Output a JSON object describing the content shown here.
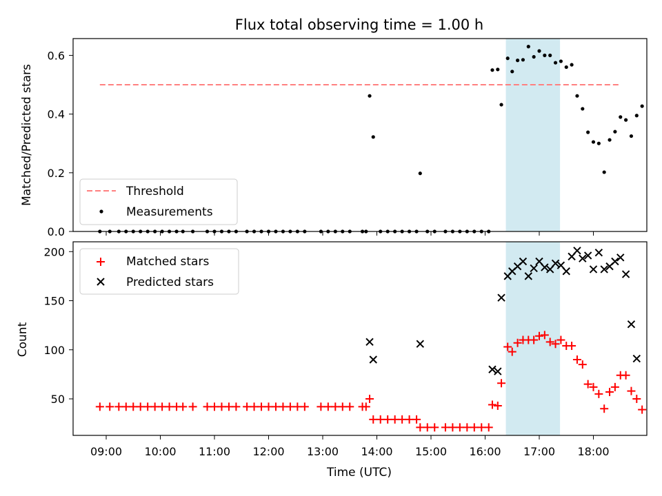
{
  "chart_data": [
    {
      "type": "scatter",
      "title": "Flux total observing time = 1.00 h",
      "xlabel": "",
      "ylabel": "Matched/Predicted stars",
      "ylim": [
        0,
        0.66
      ],
      "yticks": [
        "0.0",
        "0.2",
        "0.4",
        "0.6"
      ],
      "legend_position": "lower-left",
      "threshold": {
        "name": "Threshold",
        "value": 0.5,
        "x_range": [
          "08:53",
          "18:30"
        ]
      },
      "highlight_span": {
        "start": "16:23",
        "end": "17:23"
      },
      "series": [
        {
          "name": "Measurements",
          "points": [
            [
              "08:53",
              0
            ],
            [
              "09:04",
              0
            ],
            [
              "09:14",
              0
            ],
            [
              "09:22",
              0
            ],
            [
              "09:30",
              0
            ],
            [
              "09:38",
              0
            ],
            [
              "09:46",
              0
            ],
            [
              "09:54",
              0
            ],
            [
              "10:02",
              0
            ],
            [
              "10:10",
              0
            ],
            [
              "10:18",
              0
            ],
            [
              "10:25",
              0
            ],
            [
              "10:36",
              0
            ],
            [
              "10:52",
              0
            ],
            [
              "11:00",
              0
            ],
            [
              "11:08",
              0
            ],
            [
              "11:16",
              0
            ],
            [
              "11:24",
              0
            ],
            [
              "11:36",
              0
            ],
            [
              "11:44",
              0
            ],
            [
              "11:52",
              0
            ],
            [
              "12:00",
              0
            ],
            [
              "12:08",
              0
            ],
            [
              "12:16",
              0
            ],
            [
              "12:24",
              0
            ],
            [
              "12:32",
              0
            ],
            [
              "12:40",
              0
            ],
            [
              "12:58",
              0
            ],
            [
              "13:06",
              0
            ],
            [
              "13:14",
              0
            ],
            [
              "13:22",
              0
            ],
            [
              "13:30",
              0
            ],
            [
              "13:44",
              0
            ],
            [
              "13:48",
              0
            ],
            [
              "13:52",
              0.462
            ],
            [
              "13:56",
              0.322
            ],
            [
              "14:04",
              0
            ],
            [
              "14:12",
              0
            ],
            [
              "14:20",
              0
            ],
            [
              "14:28",
              0
            ],
            [
              "14:36",
              0
            ],
            [
              "14:44",
              0
            ],
            [
              "14:48",
              0.198
            ],
            [
              "14:56",
              0
            ],
            [
              "15:04",
              0
            ],
            [
              "15:16",
              0
            ],
            [
              "15:24",
              0
            ],
            [
              "15:32",
              0
            ],
            [
              "15:40",
              0
            ],
            [
              "15:48",
              0
            ],
            [
              "15:56",
              0
            ],
            [
              "16:04",
              0
            ],
            [
              "16:08",
              0.55
            ],
            [
              "16:14",
              0.552
            ],
            [
              "16:18",
              0.432
            ],
            [
              "16:25",
              0.59
            ],
            [
              "16:30",
              0.545
            ],
            [
              "16:36",
              0.583
            ],
            [
              "16:42",
              0.585
            ],
            [
              "16:48",
              0.63
            ],
            [
              "16:54",
              0.595
            ],
            [
              "17:00",
              0.615
            ],
            [
              "17:06",
              0.6
            ],
            [
              "17:12",
              0.6
            ],
            [
              "17:18",
              0.575
            ],
            [
              "17:24",
              0.58
            ],
            [
              "17:30",
              0.56
            ],
            [
              "17:36",
              0.568
            ],
            [
              "17:42",
              0.462
            ],
            [
              "17:48",
              0.418
            ],
            [
              "17:54",
              0.338
            ],
            [
              "18:00",
              0.305
            ],
            [
              "18:06",
              0.3
            ],
            [
              "18:12",
              0.202
            ],
            [
              "18:18",
              0.312
            ],
            [
              "18:24",
              0.34
            ],
            [
              "18:30",
              0.39
            ],
            [
              "18:36",
              0.38
            ],
            [
              "18:42",
              0.325
            ],
            [
              "18:48",
              0.395
            ],
            [
              "18:54",
              0.427
            ]
          ]
        }
      ]
    },
    {
      "type": "scatter",
      "title": "",
      "xlabel": "Time (UTC)",
      "ylabel": "Count",
      "ylim": [
        12,
        212
      ],
      "yticks": [
        "50",
        "100",
        "150",
        "200"
      ],
      "xticks": [
        "09:00",
        "10:00",
        "11:00",
        "12:00",
        "13:00",
        "14:00",
        "15:00",
        "16:00",
        "17:00",
        "18:00"
      ],
      "legend_position": "upper-left",
      "highlight_span": {
        "start": "16:23",
        "end": "17:23"
      },
      "series": [
        {
          "name": "Matched stars",
          "color": "#ff0000",
          "marker": "plus",
          "points": [
            [
              "08:53",
              42
            ],
            [
              "09:04",
              42
            ],
            [
              "09:14",
              42
            ],
            [
              "09:22",
              42
            ],
            [
              "09:30",
              42
            ],
            [
              "09:38",
              42
            ],
            [
              "09:46",
              42
            ],
            [
              "09:54",
              42
            ],
            [
              "10:02",
              42
            ],
            [
              "10:10",
              42
            ],
            [
              "10:18",
              42
            ],
            [
              "10:25",
              42
            ],
            [
              "10:36",
              42
            ],
            [
              "10:52",
              42
            ],
            [
              "11:00",
              42
            ],
            [
              "11:08",
              42
            ],
            [
              "11:16",
              42
            ],
            [
              "11:24",
              42
            ],
            [
              "11:36",
              42
            ],
            [
              "11:44",
              42
            ],
            [
              "11:52",
              42
            ],
            [
              "12:00",
              42
            ],
            [
              "12:08",
              42
            ],
            [
              "12:16",
              42
            ],
            [
              "12:24",
              42
            ],
            [
              "12:32",
              42
            ],
            [
              "12:40",
              42
            ],
            [
              "12:58",
              42
            ],
            [
              "13:06",
              42
            ],
            [
              "13:14",
              42
            ],
            [
              "13:22",
              42
            ],
            [
              "13:30",
              42
            ],
            [
              "13:44",
              42
            ],
            [
              "13:48",
              42
            ],
            [
              "13:52",
              50
            ],
            [
              "13:56",
              29
            ],
            [
              "14:04",
              29
            ],
            [
              "14:12",
              29
            ],
            [
              "14:20",
              29
            ],
            [
              "14:28",
              29
            ],
            [
              "14:36",
              29
            ],
            [
              "14:44",
              29
            ],
            [
              "14:48",
              21
            ],
            [
              "14:56",
              21
            ],
            [
              "15:04",
              21
            ],
            [
              "15:16",
              21
            ],
            [
              "15:24",
              21
            ],
            [
              "15:32",
              21
            ],
            [
              "15:40",
              21
            ],
            [
              "15:48",
              21
            ],
            [
              "15:56",
              21
            ],
            [
              "16:04",
              21
            ],
            [
              "16:08",
              44
            ],
            [
              "16:14",
              43
            ],
            [
              "16:18",
              66
            ],
            [
              "16:25",
              103
            ],
            [
              "16:30",
              98
            ],
            [
              "16:36",
              107
            ],
            [
              "16:42",
              110
            ],
            [
              "16:48",
              110
            ],
            [
              "16:54",
              110
            ],
            [
              "17:00",
              114
            ],
            [
              "17:06",
              115
            ],
            [
              "17:12",
              108
            ],
            [
              "17:18",
              106
            ],
            [
              "17:24",
              110
            ],
            [
              "17:30",
              104
            ],
            [
              "17:36",
              104
            ],
            [
              "17:42",
              90
            ],
            [
              "17:48",
              85
            ],
            [
              "17:54",
              65
            ],
            [
              "18:00",
              62
            ],
            [
              "18:06",
              55
            ],
            [
              "18:12",
              40
            ],
            [
              "18:18",
              57
            ],
            [
              "18:24",
              62
            ],
            [
              "18:30",
              74
            ],
            [
              "18:36",
              74
            ],
            [
              "18:42",
              58
            ],
            [
              "18:48",
              50
            ],
            [
              "18:54",
              39
            ]
          ]
        },
        {
          "name": "Predicted stars",
          "color": "#000000",
          "marker": "x",
          "points": [
            [
              "13:52",
              108
            ],
            [
              "13:56",
              90
            ],
            [
              "14:48",
              106
            ],
            [
              "16:08",
              80
            ],
            [
              "16:14",
              78
            ],
            [
              "16:18",
              153
            ],
            [
              "16:25",
              175
            ],
            [
              "16:30",
              180
            ],
            [
              "16:36",
              185
            ],
            [
              "16:42",
              190
            ],
            [
              "16:48",
              175
            ],
            [
              "16:54",
              183
            ],
            [
              "17:00",
              190
            ],
            [
              "17:06",
              184
            ],
            [
              "17:12",
              182
            ],
            [
              "17:18",
              188
            ],
            [
              "17:24",
              186
            ],
            [
              "17:30",
              180
            ],
            [
              "17:36",
              195
            ],
            [
              "17:42",
              201
            ],
            [
              "17:48",
              193
            ],
            [
              "17:54",
              196
            ],
            [
              "18:00",
              182
            ],
            [
              "18:06",
              199
            ],
            [
              "18:12",
              182
            ],
            [
              "18:18",
              185
            ],
            [
              "18:24",
              190
            ],
            [
              "18:30",
              194
            ],
            [
              "18:36",
              177
            ],
            [
              "18:42",
              126
            ],
            [
              "18:48",
              91
            ]
          ]
        }
      ]
    }
  ]
}
